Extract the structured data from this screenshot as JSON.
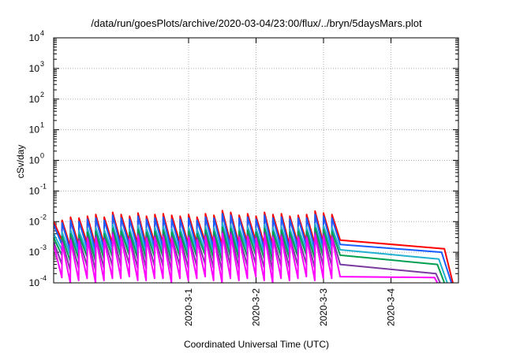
{
  "chart_data": {
    "type": "line",
    "title": "/data/run/goesPlots/archive/2020-03-04/23:00/flux/../bryn/5daysMars.plot",
    "xlabel": "Coordinated Universal Time (UTC)",
    "ylabel": "cSv/day",
    "y_scale": "log",
    "ylim": [
      0.0001,
      10000
    ],
    "xlim": [
      "2020-02-28T00:00",
      "2020-03-05T00:00"
    ],
    "grid": true,
    "legend": "none",
    "y_ticks": [
      {
        "value": 0.0001,
        "base": "10",
        "exp": "-4"
      },
      {
        "value": 0.001,
        "base": "10",
        "exp": "-3"
      },
      {
        "value": 0.01,
        "base": "10",
        "exp": "-2"
      },
      {
        "value": 0.1,
        "base": "10",
        "exp": "-1"
      },
      {
        "value": 1,
        "base": "10",
        "exp": "0"
      },
      {
        "value": 10,
        "base": "10",
        "exp": "1"
      },
      {
        "value": 100,
        "base": "10",
        "exp": "2"
      },
      {
        "value": 1000,
        "base": "10",
        "exp": "3"
      },
      {
        "value": 10000,
        "base": "10",
        "exp": "4"
      }
    ],
    "x_ticks": [
      {
        "value": "2020-03-01T00:00",
        "label": "2020-3-1"
      },
      {
        "value": "2020-03-02T00:00",
        "label": "2020-3-2"
      },
      {
        "value": "2020-03-03T00:00",
        "label": "2020-3-3"
      },
      {
        "value": "2020-03-04T00:00",
        "label": "2020-3-4"
      }
    ],
    "series": [
      {
        "color": "#ff0000",
        "peaks": [
          0.01,
          0.011,
          0.014,
          0.013,
          0.015,
          0.017,
          0.014,
          0.02,
          0.017,
          0.015,
          0.019,
          0.015,
          0.017,
          0.018,
          0.016,
          0.015,
          0.017,
          0.014,
          0.018,
          0.016,
          0.023,
          0.02,
          0.016,
          0.018,
          0.015,
          0.02,
          0.017,
          0.018,
          0.015,
          0.016,
          0.017,
          0.022,
          0.019,
          0.017
        ],
        "troughs": [
          0.0025,
          0.0015,
          0.0017,
          0.002,
          0.0016,
          0.0018,
          0.0019,
          0.002,
          0.0022,
          0.0019,
          0.0018,
          0.0021,
          0.0019,
          0.0016,
          0.002,
          0.0018,
          0.002,
          0.0022,
          0.0019,
          0.0017,
          0.002,
          0.0018,
          0.0021,
          0.0023,
          0.0018,
          0.0016,
          0.002,
          0.0017,
          0.0019,
          0.0022,
          0.0018,
          0.002,
          0.0021,
          0.0025
        ],
        "end": [
          {
            "x": "2020-03-04T19:00",
            "y": 0.0013
          },
          {
            "x": "2020-03-04T22:00",
            "y": 0.0001
          }
        ]
      },
      {
        "color": "#1a5cff",
        "peaks": [
          0.008,
          0.009,
          0.011,
          0.01,
          0.012,
          0.013,
          0.011,
          0.016,
          0.013,
          0.012,
          0.015,
          0.012,
          0.013,
          0.014,
          0.012,
          0.012,
          0.013,
          0.011,
          0.014,
          0.013,
          0.018,
          0.016,
          0.013,
          0.014,
          0.012,
          0.016,
          0.013,
          0.014,
          0.012,
          0.013,
          0.013,
          0.017,
          0.015,
          0.013
        ],
        "troughs": [
          0.0018,
          0.0011,
          0.0012,
          0.0014,
          0.0011,
          0.0013,
          0.0014,
          0.0014,
          0.0016,
          0.0013,
          0.0013,
          0.0015,
          0.0014,
          0.0011,
          0.0014,
          0.0013,
          0.0014,
          0.0016,
          0.0013,
          0.0012,
          0.0014,
          0.0013,
          0.0015,
          0.0016,
          0.0013,
          0.0011,
          0.0014,
          0.0012,
          0.0014,
          0.0016,
          0.0013,
          0.0014,
          0.0015,
          0.0018
        ],
        "end": [
          {
            "x": "2020-03-04T18:00",
            "y": 0.001
          },
          {
            "x": "2020-03-04T21:30",
            "y": 0.0001
          }
        ]
      },
      {
        "color": "#22b0d0",
        "peaks": [
          0.004,
          0.0045,
          0.0055,
          0.005,
          0.006,
          0.0065,
          0.0055,
          0.008,
          0.0065,
          0.006,
          0.0075,
          0.006,
          0.0065,
          0.007,
          0.006,
          0.006,
          0.0065,
          0.0055,
          0.007,
          0.0065,
          0.009,
          0.008,
          0.0065,
          0.007,
          0.006,
          0.008,
          0.0065,
          0.007,
          0.006,
          0.0065,
          0.0065,
          0.0085,
          0.0075,
          0.0065
        ],
        "troughs": [
          0.0012,
          0.0008,
          0.0009,
          0.001,
          0.0008,
          0.0009,
          0.001,
          0.001,
          0.0011,
          0.0009,
          0.0009,
          0.0011,
          0.001,
          0.0008,
          0.001,
          0.0009,
          0.001,
          0.0011,
          0.0009,
          0.0008,
          0.001,
          0.0009,
          0.0011,
          0.0012,
          0.0009,
          0.0008,
          0.001,
          0.0009,
          0.001,
          0.0011,
          0.0009,
          0.001,
          0.0011,
          0.0012
        ],
        "end": [
          {
            "x": "2020-03-04T17:00",
            "y": 0.0006
          },
          {
            "x": "2020-03-04T20:00",
            "y": 0.0001
          }
        ]
      },
      {
        "color": "#00a050",
        "peaks": [
          0.003,
          0.0033,
          0.004,
          0.0037,
          0.0045,
          0.0048,
          0.004,
          0.006,
          0.0048,
          0.0045,
          0.0055,
          0.0045,
          0.0048,
          0.0052,
          0.0045,
          0.0045,
          0.0048,
          0.004,
          0.0052,
          0.0048,
          0.0065,
          0.006,
          0.0048,
          0.0052,
          0.0045,
          0.006,
          0.0048,
          0.0052,
          0.0045,
          0.0048,
          0.0048,
          0.0062,
          0.0055,
          0.0048
        ],
        "troughs": [
          0.0008,
          0.0005,
          0.0006,
          0.0007,
          0.0005,
          0.0006,
          0.0007,
          0.0007,
          0.0008,
          0.0006,
          0.0006,
          0.0007,
          0.0007,
          0.0005,
          0.0007,
          0.0006,
          0.0007,
          0.0008,
          0.0006,
          0.0005,
          0.0007,
          0.0006,
          0.0007,
          0.0008,
          0.0006,
          0.0005,
          0.0007,
          0.0006,
          0.0007,
          0.0008,
          0.0006,
          0.0007,
          0.0007,
          0.0008
        ],
        "end": [
          {
            "x": "2020-03-04T16:30",
            "y": 0.0004
          },
          {
            "x": "2020-03-04T19:00",
            "y": 0.0001
          }
        ]
      },
      {
        "color": "#7a3aa0",
        "peaks": [
          0.0022,
          0.0024,
          0.003,
          0.0028,
          0.0033,
          0.0035,
          0.003,
          0.0045,
          0.0035,
          0.0033,
          0.004,
          0.0033,
          0.0035,
          0.0038,
          0.0033,
          0.0033,
          0.0035,
          0.003,
          0.0038,
          0.0035,
          0.0048,
          0.0045,
          0.0035,
          0.0038,
          0.0033,
          0.0045,
          0.0035,
          0.0038,
          0.0033,
          0.0035,
          0.0035,
          0.0045,
          0.004,
          0.0035
        ],
        "troughs": [
          0.0004,
          0.00025,
          0.0003,
          0.00035,
          0.00025,
          0.0003,
          0.00035,
          0.00035,
          0.0004,
          0.0003,
          0.0003,
          0.00035,
          0.00035,
          0.00025,
          0.00035,
          0.0003,
          0.00035,
          0.0004,
          0.0003,
          0.00025,
          0.00035,
          0.0003,
          0.00035,
          0.0004,
          0.0003,
          0.00025,
          0.00035,
          0.0003,
          0.00035,
          0.0004,
          0.0003,
          0.00035,
          0.00035,
          0.0004
        ],
        "end": [
          {
            "x": "2020-03-04T16:00",
            "y": 0.0002
          },
          {
            "x": "2020-03-04T17:30",
            "y": 0.0001
          }
        ]
      },
      {
        "color": "#ff00ff",
        "peaks": [
          0.0018,
          0.002,
          0.0025,
          0.0023,
          0.0028,
          0.003,
          0.0025,
          0.0038,
          0.003,
          0.0028,
          0.0034,
          0.0028,
          0.003,
          0.0032,
          0.0028,
          0.0028,
          0.003,
          0.0025,
          0.0032,
          0.003,
          0.004,
          0.0038,
          0.003,
          0.0032,
          0.0028,
          0.0038,
          0.003,
          0.0032,
          0.0028,
          0.003,
          0.003,
          0.0038,
          0.0034,
          0.003
        ],
        "troughs": [
          0.00015,
          0.0001,
          0.00012,
          0.00014,
          0.0001,
          0.00012,
          0.00014,
          0.00014,
          0.00016,
          0.00012,
          0.00012,
          0.00014,
          0.00014,
          0.0001,
          0.00014,
          0.00012,
          0.00014,
          0.00016,
          0.00012,
          0.0001,
          0.00014,
          0.00012,
          0.00014,
          0.00016,
          0.00012,
          0.0001,
          0.00014,
          0.00012,
          0.00014,
          0.00016,
          0.00012,
          0.00014,
          0.00014,
          0.00016
        ],
        "end": [
          {
            "x": "2020-03-04T15:30",
            "y": 0.00015
          },
          {
            "x": "2020-03-04T16:30",
            "y": 0.0001
          }
        ]
      }
    ],
    "cycle_hours": 3.0,
    "first_cycle_start": "2020-02-28T00:00",
    "notes": ""
  }
}
